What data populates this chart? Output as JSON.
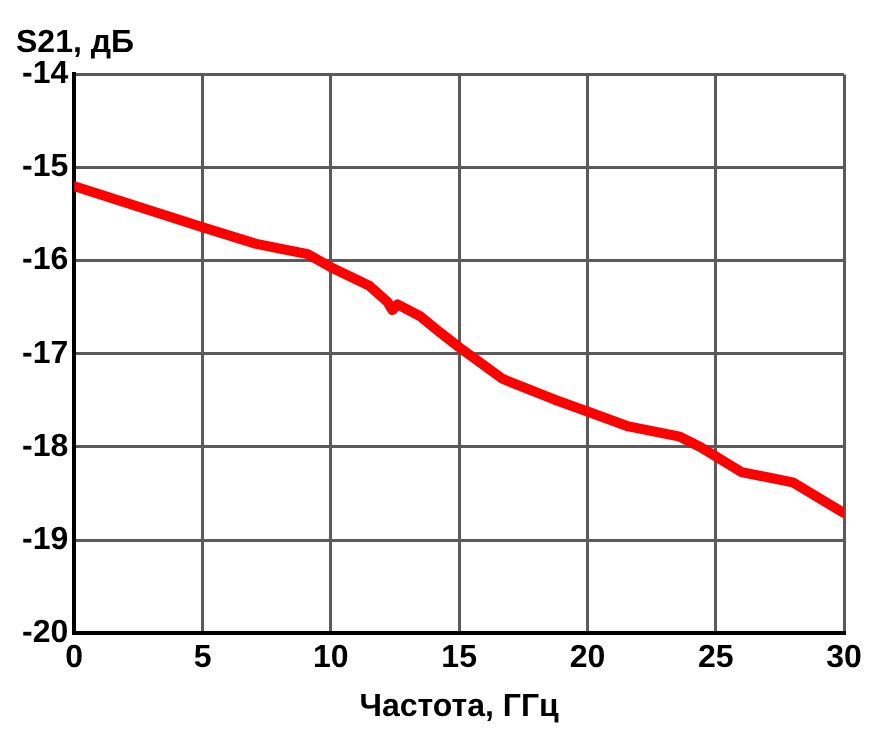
{
  "chart_data": {
    "type": "line",
    "title": "S21, дБ",
    "xlabel": "Частота, ГГц",
    "series": [
      {
        "color": "#ff0000",
        "x": [
          0,
          5,
          7.1,
          9.1,
          10,
          11.5,
          12.2,
          12.4,
          12.6,
          13.5,
          14.3,
          15,
          16.7,
          18.7,
          20,
          21.6,
          23.6,
          24.4,
          26,
          28,
          30
        ],
        "values": [
          -15.2,
          -15.64,
          -15.82,
          -15.93,
          -16.07,
          -16.27,
          -16.44,
          -16.53,
          -16.47,
          -16.6,
          -16.78,
          -16.93,
          -17.27,
          -17.49,
          -17.62,
          -17.78,
          -17.89,
          -18.0,
          -18.27,
          -18.38,
          -18.71
        ]
      }
    ],
    "xlim": [
      0,
      30
    ],
    "xticks": [
      0,
      5,
      10,
      15,
      20,
      25,
      30
    ],
    "ylim": [
      -20,
      -14
    ],
    "yticks": [
      -20,
      -19,
      -18,
      -17,
      -16,
      -15,
      -14
    ],
    "grid": true,
    "legend": false,
    "marker": "none",
    "line_style": "solid"
  }
}
